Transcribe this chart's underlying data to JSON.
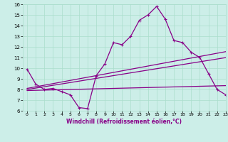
{
  "xlabel": "Windchill (Refroidissement éolien,°C)",
  "x_hours": [
    0,
    1,
    2,
    3,
    4,
    5,
    6,
    7,
    8,
    9,
    10,
    11,
    12,
    13,
    14,
    15,
    16,
    17,
    18,
    19,
    20,
    21,
    22,
    23
  ],
  "line1_y": [
    9.9,
    8.5,
    8.0,
    8.1,
    7.8,
    7.5,
    6.3,
    6.2,
    9.3,
    10.4,
    12.4,
    12.2,
    13.0,
    14.5,
    15.0,
    15.8,
    14.6,
    12.6,
    12.4,
    11.5,
    11.0,
    9.5,
    8.0,
    7.5
  ],
  "line2_y": [
    8.1,
    8.25,
    8.4,
    8.55,
    8.7,
    8.85,
    9.0,
    9.15,
    9.3,
    9.45,
    9.6,
    9.75,
    9.9,
    10.05,
    10.2,
    10.35,
    10.5,
    10.65,
    10.8,
    10.95,
    11.1,
    11.25,
    11.4,
    11.55
  ],
  "line3_y": [
    8.0,
    8.13,
    8.26,
    8.39,
    8.52,
    8.65,
    8.78,
    8.91,
    9.04,
    9.17,
    9.3,
    9.43,
    9.56,
    9.69,
    9.82,
    9.95,
    10.08,
    10.21,
    10.34,
    10.47,
    10.6,
    10.73,
    10.86,
    10.99
  ],
  "line4_y": [
    7.9,
    7.92,
    7.94,
    7.96,
    7.98,
    8.0,
    8.02,
    8.04,
    8.06,
    8.08,
    8.1,
    8.12,
    8.14,
    8.16,
    8.18,
    8.2,
    8.22,
    8.24,
    8.26,
    8.28,
    8.3,
    8.32,
    8.34,
    8.36
  ],
  "line_color": "#880088",
  "bg_color": "#cceee8",
  "grid_color": "#aaddcc",
  "ylim": [
    6,
    16
  ],
  "xlim": [
    -0.5,
    23
  ],
  "yticks": [
    6,
    7,
    8,
    9,
    10,
    11,
    12,
    13,
    14,
    15,
    16
  ],
  "xticks": [
    0,
    1,
    2,
    3,
    4,
    5,
    6,
    7,
    8,
    9,
    10,
    11,
    12,
    13,
    14,
    15,
    16,
    17,
    18,
    19,
    20,
    21,
    22,
    23
  ]
}
